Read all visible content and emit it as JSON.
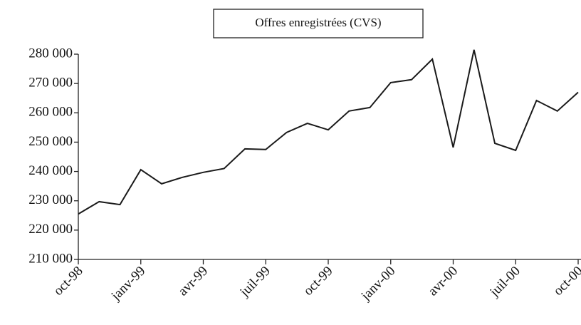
{
  "chart_data": {
    "type": "line",
    "title": "Offres enregistrées (CVS)",
    "categories": [
      "oct-98",
      null,
      null,
      "janv-99",
      null,
      null,
      "avr-99",
      null,
      null,
      "juil-99",
      null,
      null,
      "oct-99",
      null,
      null,
      "janv-00",
      null,
      null,
      "avr-00",
      null,
      null,
      "juil-00",
      null,
      null,
      "oct-00"
    ],
    "values": [
      225500,
      229700,
      228700,
      240600,
      235800,
      238000,
      239700,
      241000,
      247700,
      247500,
      253300,
      256400,
      254200,
      260600,
      261800,
      270300,
      271300,
      278300,
      248200,
      281500,
      249600,
      247200,
      264200,
      260600,
      267000
    ],
    "color": "#1a1a1a",
    "ylim": [
      210000,
      280000
    ],
    "yticks": [
      {
        "value": 210000,
        "label": "210 000"
      },
      {
        "value": 220000,
        "label": "220 000"
      },
      {
        "value": 230000,
        "label": "230 000"
      },
      {
        "value": 240000,
        "label": "240 000"
      },
      {
        "value": 250000,
        "label": "250 000"
      },
      {
        "value": 260000,
        "label": "260 000"
      },
      {
        "value": 270000,
        "label": "270 000"
      },
      {
        "value": 280000,
        "label": "280 000"
      }
    ],
    "grid": false
  }
}
